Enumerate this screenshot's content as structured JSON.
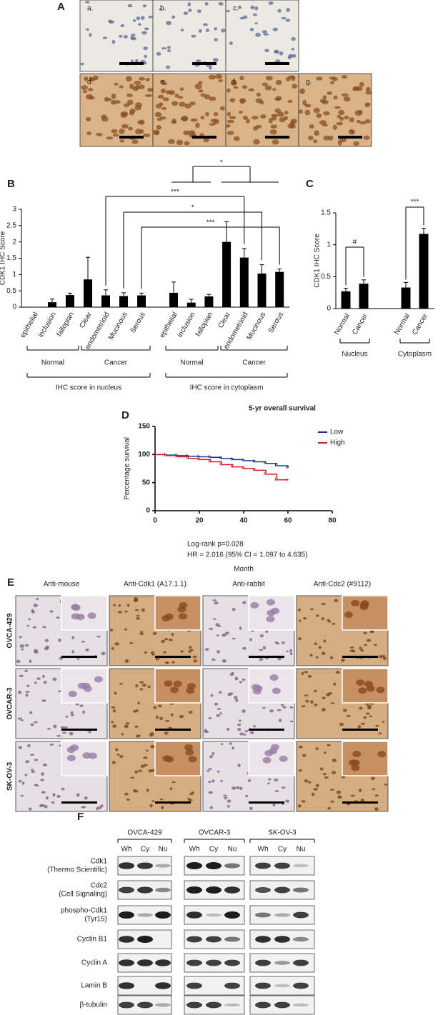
{
  "panel_a": {
    "letter": "A",
    "tiles": [
      "a.",
      "b.",
      "c.",
      "d.",
      "e.",
      "f.",
      "g."
    ]
  },
  "chart_data": [
    {
      "type": "bar",
      "panel": "B",
      "y_label": "CDK1 IHC Score",
      "categories": [
        "epithelial",
        "inclusion",
        "fallopian",
        "Clear",
        "endometrioid",
        "Mucinous",
        "Serous",
        "epithelial",
        "inclusion",
        "fallopian",
        "Clear",
        "endometrioid",
        "Mucinous",
        "Serous"
      ],
      "values": [
        0,
        0.15,
        0.37,
        0.85,
        0.36,
        0.34,
        0.36,
        0.44,
        0.14,
        0.33,
        2.0,
        1.52,
        1.03,
        1.08
      ],
      "errors": [
        0,
        0.1,
        0.06,
        0.68,
        0.17,
        0.1,
        0.07,
        0.33,
        0.1,
        0.06,
        0.62,
        0.28,
        0.27,
        0.09
      ],
      "color": "#000000",
      "ylim": [
        0,
        3
      ],
      "yticks": [
        0,
        0.5,
        1,
        1.5,
        2,
        2.5,
        3
      ],
      "group_labels": [
        "Normal",
        "Cancer",
        "Normal",
        "Cancer"
      ],
      "section_labels": [
        "IHC score in nucleus",
        "IHC score in cytoplasm"
      ],
      "annotations": [
        "*",
        "***",
        "*",
        "***"
      ]
    },
    {
      "type": "bar",
      "panel": "C",
      "y_label": "CDK1 IHC Score",
      "categories": [
        "Normal",
        "Cancer",
        "Normal",
        "Cancer"
      ],
      "values": [
        0.27,
        0.39,
        0.33,
        1.17
      ],
      "errors": [
        0.05,
        0.06,
        0.08,
        0.09
      ],
      "color": "#000000",
      "ylim": [
        0,
        1.5
      ],
      "yticks": [
        0,
        0.5,
        1,
        1.5
      ],
      "group_labels": [
        "Nucleus",
        "Cytoplasm"
      ],
      "annotations": [
        "#",
        "***"
      ]
    },
    {
      "type": "line",
      "panel": "D",
      "title": "5-yr overall survival",
      "x_label": "Month",
      "y_label": "Percentage survival",
      "step": true,
      "x": [
        0,
        5,
        10,
        15,
        20,
        25,
        30,
        35,
        40,
        45,
        50,
        55,
        60
      ],
      "series": [
        {
          "name": "Low",
          "color": "#1f2f8f",
          "values": [
            100,
            99,
            98,
            97,
            96,
            95,
            93,
            91,
            89,
            87,
            84,
            80,
            76
          ]
        },
        {
          "name": "High",
          "color": "#d11f1f",
          "values": [
            100,
            98,
            96,
            93,
            91,
            87,
            82,
            78,
            75,
            72,
            65,
            55,
            54
          ]
        }
      ],
      "xlim": [
        0,
        80
      ],
      "xticks": [
        0,
        20,
        40,
        60,
        80
      ],
      "ylim": [
        0,
        150
      ],
      "yticks": [
        0,
        50,
        100,
        150
      ],
      "legend": "upper right",
      "annotations": [
        "Log-rank p=0.028",
        "HR = 2.016 (95% CI = 1.097 to 4.635)"
      ]
    }
  ],
  "panel_e": {
    "letter": "E",
    "columns": [
      "Anti-mouse",
      "Anti-Cdk1 (A17.1.1)",
      "Anti-rabbit",
      "Anti-Cdc2 (#9112)"
    ],
    "rows": [
      "OVCA-429",
      "OVCAR-3",
      "SK-OV-3"
    ]
  },
  "panel_f": {
    "letter": "F",
    "groups": [
      "OVCA-429",
      "OVCAR-3",
      "SK-OV-3"
    ],
    "lanes": [
      "Wh",
      "Cy",
      "Nu",
      "Wh",
      "Cy",
      "Nu",
      "Wh",
      "Cy",
      "Nu"
    ],
    "rows": [
      [
        "Cdk1",
        "(Thermo Scientific)"
      ],
      [
        "Cdc2",
        "(Cell Signaling)"
      ],
      [
        "phospho-Cdk1",
        "(Tyr15)"
      ],
      [
        "Cyclin B1"
      ],
      [
        "Cyclin A"
      ],
      [
        "Lamin B"
      ],
      [
        "β-tubulin"
      ]
    ]
  }
}
